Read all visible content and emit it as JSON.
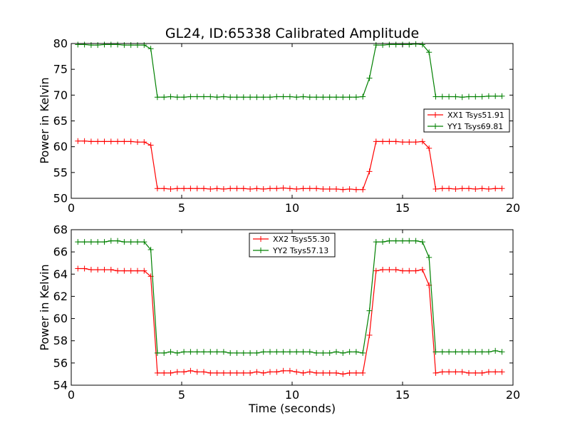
{
  "chart_data": [
    {
      "type": "line",
      "title": "GL24, ID:65338 Calibrated Amplitude",
      "xlabel": "",
      "ylabel": "Power in Kelvin",
      "xlim": [
        0,
        20
      ],
      "ylim": [
        50,
        80
      ],
      "xticks": [
        0,
        5,
        10,
        15,
        20
      ],
      "yticks": [
        50,
        55,
        60,
        65,
        70,
        75,
        80
      ],
      "legend_position": "center-right",
      "grid": false,
      "x": [
        0.3,
        0.6,
        0.9,
        1.2,
        1.5,
        1.8,
        2.1,
        2.4,
        2.7,
        3.0,
        3.3,
        3.6,
        3.9,
        4.2,
        4.5,
        4.8,
        5.1,
        5.4,
        5.7,
        6.0,
        6.3,
        6.6,
        6.9,
        7.2,
        7.5,
        7.8,
        8.1,
        8.4,
        8.7,
        9.0,
        9.3,
        9.6,
        9.9,
        10.2,
        10.5,
        10.8,
        11.1,
        11.4,
        11.7,
        12.0,
        12.3,
        12.6,
        12.9,
        13.2,
        13.5,
        13.8,
        14.1,
        14.4,
        14.7,
        15.0,
        15.3,
        15.6,
        15.9,
        16.2,
        16.5,
        16.8,
        17.1,
        17.4,
        17.7,
        18.0,
        18.3,
        18.6,
        18.9,
        19.2,
        19.5
      ],
      "series": [
        {
          "name": "XX1 Tsys51.91",
          "color": "#ff0000",
          "values": [
            61.1,
            61.1,
            61.0,
            61.0,
            61.0,
            61.0,
            61.0,
            61.0,
            61.0,
            60.9,
            60.9,
            60.3,
            51.9,
            51.9,
            51.8,
            51.9,
            51.9,
            51.9,
            51.9,
            51.9,
            51.8,
            51.9,
            51.8,
            51.9,
            51.9,
            51.9,
            51.8,
            51.9,
            51.8,
            51.9,
            51.9,
            52.0,
            51.9,
            51.8,
            51.9,
            51.9,
            51.9,
            51.8,
            51.8,
            51.8,
            51.7,
            51.8,
            51.7,
            51.7,
            55.2,
            61.0,
            61.0,
            61.0,
            61.0,
            60.9,
            60.9,
            60.9,
            61.0,
            59.7,
            51.8,
            51.9,
            51.9,
            51.8,
            51.9,
            51.9,
            51.8,
            51.9,
            51.8,
            51.9,
            51.9
          ]
        },
        {
          "name": "YY1 Tsys69.81",
          "color": "#008000",
          "values": [
            79.8,
            79.8,
            79.7,
            79.7,
            79.8,
            79.8,
            79.8,
            79.7,
            79.7,
            79.7,
            79.7,
            79.0,
            69.6,
            69.6,
            69.7,
            69.6,
            69.6,
            69.7,
            69.7,
            69.7,
            69.7,
            69.6,
            69.7,
            69.6,
            69.6,
            69.6,
            69.6,
            69.6,
            69.6,
            69.6,
            69.7,
            69.7,
            69.7,
            69.6,
            69.7,
            69.6,
            69.6,
            69.6,
            69.6,
            69.6,
            69.6,
            69.6,
            69.6,
            69.7,
            73.3,
            79.7,
            79.7,
            79.8,
            79.8,
            79.8,
            79.8,
            79.9,
            79.8,
            78.3,
            69.7,
            69.7,
            69.7,
            69.7,
            69.6,
            69.7,
            69.7,
            69.7,
            69.8,
            69.8,
            69.8
          ]
        }
      ]
    },
    {
      "type": "line",
      "title": "",
      "xlabel": "Time (seconds)",
      "ylabel": "Power in Kelvin",
      "xlim": [
        0,
        20
      ],
      "ylim": [
        54,
        68
      ],
      "xticks": [
        0,
        5,
        10,
        15,
        20
      ],
      "yticks": [
        54,
        56,
        58,
        60,
        62,
        64,
        66,
        68
      ],
      "legend_position": "upper-center",
      "grid": false,
      "x": [
        0.3,
        0.6,
        0.9,
        1.2,
        1.5,
        1.8,
        2.1,
        2.4,
        2.7,
        3.0,
        3.3,
        3.6,
        3.9,
        4.2,
        4.5,
        4.8,
        5.1,
        5.4,
        5.7,
        6.0,
        6.3,
        6.6,
        6.9,
        7.2,
        7.5,
        7.8,
        8.1,
        8.4,
        8.7,
        9.0,
        9.3,
        9.6,
        9.9,
        10.2,
        10.5,
        10.8,
        11.1,
        11.4,
        11.7,
        12.0,
        12.3,
        12.6,
        12.9,
        13.2,
        13.5,
        13.8,
        14.1,
        14.4,
        14.7,
        15.0,
        15.3,
        15.6,
        15.9,
        16.2,
        16.5,
        16.8,
        17.1,
        17.4,
        17.7,
        18.0,
        18.3,
        18.6,
        18.9,
        19.2,
        19.5
      ],
      "series": [
        {
          "name": "XX2 Tsys55.30",
          "color": "#ff0000",
          "values": [
            64.5,
            64.5,
            64.4,
            64.4,
            64.4,
            64.4,
            64.3,
            64.3,
            64.3,
            64.3,
            64.3,
            63.8,
            55.1,
            55.1,
            55.1,
            55.2,
            55.2,
            55.3,
            55.2,
            55.2,
            55.1,
            55.1,
            55.1,
            55.1,
            55.1,
            55.1,
            55.1,
            55.2,
            55.1,
            55.2,
            55.2,
            55.3,
            55.3,
            55.2,
            55.1,
            55.2,
            55.1,
            55.1,
            55.1,
            55.1,
            55.0,
            55.1,
            55.1,
            55.1,
            58.5,
            64.3,
            64.4,
            64.4,
            64.4,
            64.3,
            64.3,
            64.3,
            64.4,
            63.0,
            55.1,
            55.2,
            55.2,
            55.2,
            55.2,
            55.1,
            55.1,
            55.1,
            55.2,
            55.2,
            55.2
          ]
        },
        {
          "name": "YY2 Tsys57.13",
          "color": "#008000",
          "values": [
            66.9,
            66.9,
            66.9,
            66.9,
            66.9,
            67.0,
            67.0,
            66.9,
            66.9,
            66.9,
            66.9,
            66.2,
            56.9,
            56.9,
            57.0,
            56.9,
            57.0,
            57.0,
            57.0,
            57.0,
            57.0,
            57.0,
            57.0,
            56.9,
            56.9,
            56.9,
            56.9,
            56.9,
            57.0,
            57.0,
            57.0,
            57.0,
            57.0,
            57.0,
            57.0,
            57.0,
            56.9,
            56.9,
            56.9,
            57.0,
            56.9,
            57.0,
            57.0,
            56.9,
            60.7,
            66.9,
            66.9,
            67.0,
            67.0,
            67.0,
            67.0,
            67.0,
            66.9,
            65.5,
            57.0,
            57.0,
            57.0,
            57.0,
            57.0,
            57.0,
            57.0,
            57.0,
            57.0,
            57.1,
            57.0
          ]
        }
      ]
    }
  ]
}
